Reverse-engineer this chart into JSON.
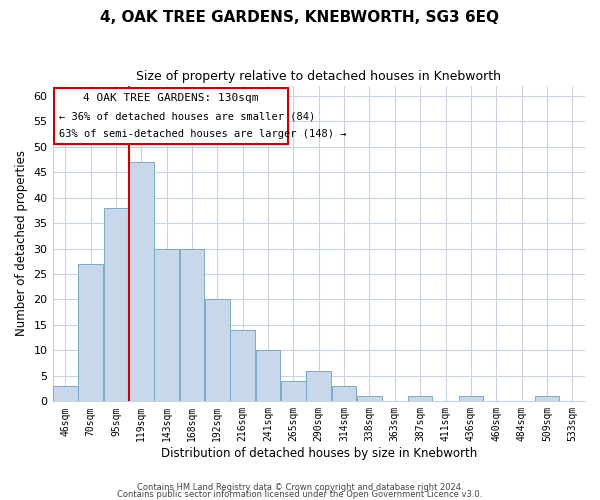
{
  "title": "4, OAK TREE GARDENS, KNEBWORTH, SG3 6EQ",
  "subtitle": "Size of property relative to detached houses in Knebworth",
  "xlabel": "Distribution of detached houses by size in Knebworth",
  "ylabel": "Number of detached properties",
  "bar_labels": [
    "46sqm",
    "70sqm",
    "95sqm",
    "119sqm",
    "143sqm",
    "168sqm",
    "192sqm",
    "216sqm",
    "241sqm",
    "265sqm",
    "290sqm",
    "314sqm",
    "338sqm",
    "363sqm",
    "387sqm",
    "411sqm",
    "436sqm",
    "460sqm",
    "484sqm",
    "509sqm",
    "533sqm"
  ],
  "bar_values": [
    3,
    27,
    38,
    47,
    30,
    30,
    20,
    14,
    10,
    4,
    6,
    3,
    1,
    0,
    1,
    0,
    1,
    0,
    0,
    1,
    0
  ],
  "bar_color": "#c8d8ea",
  "bar_edgecolor": "#7aaac8",
  "ref_line_x": 3.0,
  "ref_line_color": "#cc0000",
  "ylim": [
    0,
    62
  ],
  "yticks": [
    0,
    5,
    10,
    15,
    20,
    25,
    30,
    35,
    40,
    45,
    50,
    55,
    60
  ],
  "annotation_title": "4 OAK TREE GARDENS: 130sqm",
  "annotation_line1": "← 36% of detached houses are smaller (84)",
  "annotation_line2": "63% of semi-detached houses are larger (148) →",
  "annotation_box_color": "#ffffff",
  "annotation_box_edgecolor": "#cc0000",
  "footer_line1": "Contains HM Land Registry data © Crown copyright and database right 2024.",
  "footer_line2": "Contains public sector information licensed under the Open Government Licence v3.0.",
  "background_color": "#ffffff",
  "grid_color": "#c8d4e0"
}
